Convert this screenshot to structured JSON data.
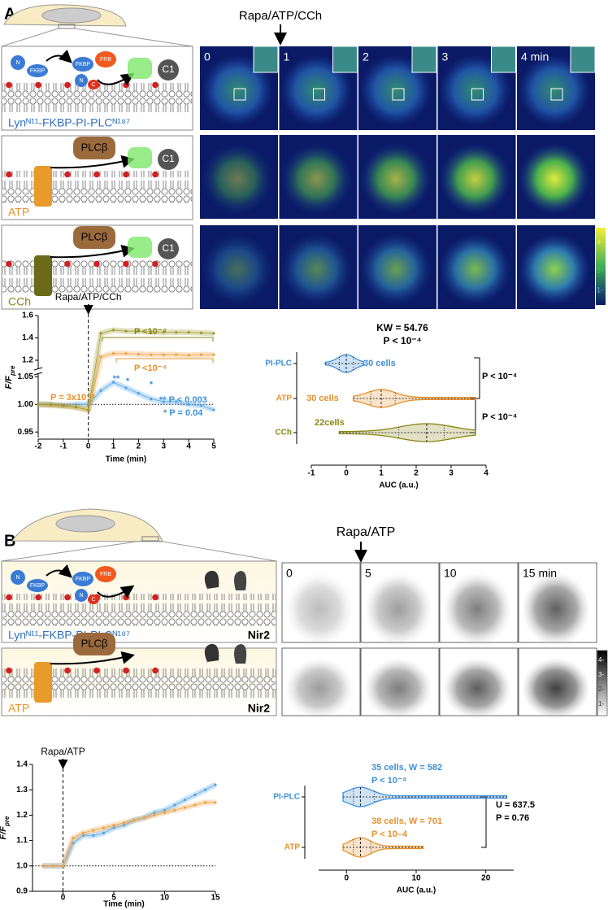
{
  "panels": [
    {
      "label": "A",
      "stimulus": "Rapa/ATP/CCh",
      "time_labels": [
        "0",
        "1",
        "2",
        "3",
        "4 min"
      ],
      "schematics": [
        {
          "title": "Lynᴺ¹¹-FKBP-PI-PLCᴺ¹⁸⁷",
          "parts": [
            "N",
            "FKBP",
            "FKBP",
            "FRB",
            "N",
            "C",
            "C1"
          ]
        },
        {
          "title": "ATP",
          "parts": [
            "PLCβ",
            "C1"
          ]
        },
        {
          "title": "CCh",
          "parts": [
            "PLCβ",
            "C1"
          ]
        }
      ],
      "colorbar_ticks": [
        "4-",
        "2-",
        "1-"
      ]
    },
    {
      "label": "B",
      "stimulus": "Rapa/ATP",
      "time_labels": [
        "0",
        "5",
        "10",
        "15 min"
      ],
      "schematics": [
        {
          "title": "Lynᴺ¹¹-FKBP-PI-PLCᴺ¹⁸⁷",
          "parts": [
            "N",
            "FKBP",
            "FKBP",
            "FRB",
            "N",
            "C",
            "Nir2"
          ]
        },
        {
          "title": "ATP",
          "parts": [
            "PLCβ",
            "Nir2"
          ]
        }
      ],
      "colorbar_ticks": [
        "4-",
        "3-",
        "2-",
        "1-"
      ]
    }
  ],
  "chart_data": [
    {
      "type": "line",
      "event_label": "Rapa/ATP/CCh",
      "xlabel": "Time (min)",
      "ylabel": "F/F",
      "ylabel_sub": "pre",
      "x": [
        -2,
        -1.5,
        -1,
        -0.5,
        0,
        0.5,
        1,
        1.5,
        2,
        2.5,
        3,
        3.5,
        4,
        4.5,
        5
      ],
      "xlim": [
        -2,
        5
      ],
      "xticks": [
        -2,
        -1,
        0,
        1,
        2,
        3,
        4,
        5
      ],
      "y_segments": [
        {
          "ylim": [
            0.94,
            1.055
          ],
          "yticks": [
            0.95,
            {
              "value": 1,
              "label": "1.00"
            },
            1.05
          ]
        },
        {
          "ylim": [
            1.12,
            1.6
          ],
          "yticks": [
            1.2,
            1.4,
            1.6
          ]
        }
      ],
      "baseline": 1,
      "event_x": 0,
      "series": [
        {
          "color": "#4da3e8",
          "values": [
            1.0,
            1.0,
            0.998,
            1.0,
            1.0,
            1.025,
            1.04,
            1.03,
            1.02,
            1.01,
            1.005,
            1.005,
            1.0,
            0.998,
            0.99
          ]
        },
        {
          "color": "#f0a040",
          "values": [
            1.0,
            0.998,
            0.997,
            0.995,
            0.99,
            1.23,
            1.26,
            1.26,
            1.255,
            1.25,
            1.25,
            1.25,
            1.245,
            1.25,
            1.25
          ]
        },
        {
          "color": "#9a9a2a",
          "values": [
            1.0,
            1.0,
            0.998,
            0.995,
            0.99,
            1.44,
            1.47,
            1.46,
            1.46,
            1.455,
            1.45,
            1.45,
            1.45,
            1.445,
            1.44
          ]
        }
      ],
      "annotations": [
        {
          "text": "P <10⁻⁴",
          "color": "#8a8614"
        },
        {
          "text": "P <10⁻⁴",
          "color": "#e8902a"
        },
        {
          "text": "P = 3x10⁻⁴",
          "color": "#e8902a"
        },
        {
          "text": "** P < 0.003",
          "color": "#3d8fd9"
        },
        {
          "text": "* P = 0.04",
          "color": "#3d8fd9"
        },
        {
          "text": "**",
          "color": "#3d8fd9"
        },
        {
          "text": "*",
          "color": "#3d8fd9"
        },
        {
          "text": "*",
          "color": "#3d8fd9"
        }
      ]
    },
    {
      "type": "violin",
      "title": "KW = 54.76",
      "subtitle": "P < 10⁻⁴",
      "xlabel": "AUC (a.u.)",
      "categories": [
        "PI-PLC",
        "ATP",
        "CCh"
      ],
      "xlim": [
        -1,
        4
      ],
      "xticks": [
        -1,
        0,
        1,
        2,
        3,
        4
      ],
      "violins": [
        {
          "color": "#3d8fd9",
          "min": -0.6,
          "q1": -0.2,
          "median": 0,
          "q3": 0.2,
          "max": 0.5,
          "labels": [
            "30 cells"
          ]
        },
        {
          "color": "#e8902a",
          "min": 0.2,
          "q1": 0.7,
          "median": 1.0,
          "q3": 1.4,
          "max": 3.7,
          "labels": [
            "30 cells"
          ]
        },
        {
          "color": "#8a8614",
          "min": -0.2,
          "q1": 1.5,
          "median": 2.3,
          "q3": 2.8,
          "max": 3.7,
          "labels": [
            "22cells"
          ]
        }
      ],
      "comparisons": [
        "P < 10⁻⁴",
        "P < 10⁻⁴"
      ]
    },
    {
      "type": "line",
      "event_label": "Rapa/ATP",
      "xlabel": "Time (min)",
      "ylabel": "F/F",
      "ylabel_sub": "pre",
      "x": [
        -2,
        -1,
        0,
        1,
        2,
        3,
        4,
        5,
        6,
        7,
        8,
        9,
        10,
        11,
        12,
        13,
        14,
        15
      ],
      "xlim": [
        -3,
        15
      ],
      "xticks": [
        0,
        5,
        10,
        15
      ],
      "ylim": [
        0.9,
        1.4
      ],
      "yticks": [
        0.9,
        {
          "value": 1,
          "label": "1.0"
        },
        1.1,
        1.2,
        1.3,
        1.4
      ],
      "baseline": 1,
      "event_x": 0,
      "series": [
        {
          "color": "#4da3e8",
          "values": [
            1,
            1,
            1,
            1.09,
            1.12,
            1.12,
            1.13,
            1.15,
            1.16,
            1.18,
            1.19,
            1.21,
            1.22,
            1.24,
            1.26,
            1.28,
            1.3,
            1.32
          ]
        },
        {
          "color": "#f0a040",
          "values": [
            1,
            1,
            1,
            1.11,
            1.13,
            1.14,
            1.15,
            1.16,
            1.17,
            1.18,
            1.19,
            1.2,
            1.21,
            1.22,
            1.23,
            1.24,
            1.25,
            1.25
          ]
        }
      ]
    },
    {
      "type": "violin",
      "xlabel": "AUC (a.u.)",
      "categories": [
        "PI-PLC",
        "ATP"
      ],
      "xlim": [
        -4,
        24
      ],
      "xticks": [
        0,
        10,
        20
      ],
      "violins": [
        {
          "color": "#3d8fd9",
          "min": -0.5,
          "q1": 1,
          "median": 2,
          "q3": 4,
          "max": 23,
          "labels": [
            "35 cells, W = 582",
            "P < 10⁻⁴"
          ]
        },
        {
          "color": "#e8902a",
          "min": -0.5,
          "q1": 1,
          "median": 2,
          "q3": 3.5,
          "max": 11,
          "labels": [
            "38 cells, W = 701",
            "P < 10–4"
          ]
        }
      ],
      "comparisons": [
        "U = 637.5",
        "P = 0.76"
      ]
    }
  ]
}
